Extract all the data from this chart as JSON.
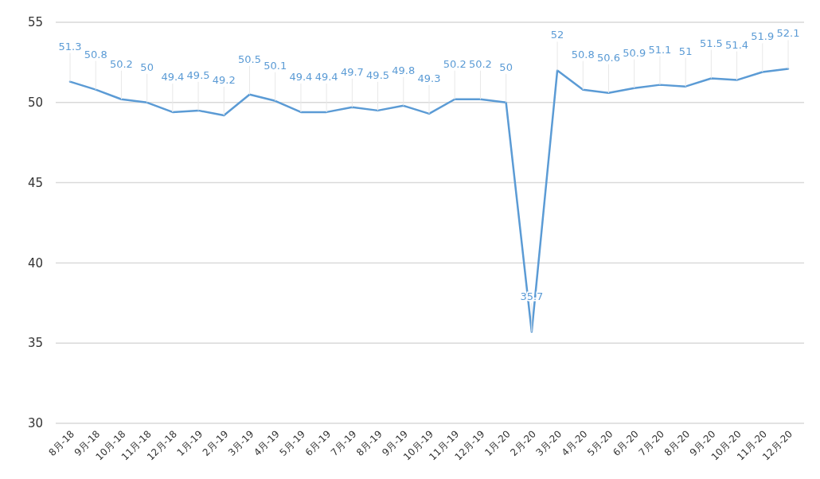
{
  "chart_data": {
    "type": "line",
    "categories": [
      "8月-18",
      "9月-18",
      "10月-18",
      "11月-18",
      "12月-18",
      "1月-19",
      "2月-19",
      "3月-19",
      "4月-19",
      "5月-19",
      "6月-19",
      "7月-19",
      "8月-19",
      "9月-19",
      "10月-19",
      "11月-19",
      "12月-19",
      "1月-20",
      "2月-20",
      "3月-20",
      "4月-20",
      "5月-20",
      "6月-20",
      "7月-20",
      "8月-20",
      "9月-20",
      "10月-20",
      "11月-20",
      "12月-20"
    ],
    "series": [
      {
        "color": "#5b9bd5",
        "values": [
          51.3,
          50.8,
          50.2,
          50,
          49.4,
          49.5,
          49.2,
          50.5,
          50.1,
          49.4,
          49.4,
          49.7,
          49.5,
          49.8,
          49.3,
          50.2,
          50.2,
          50,
          35.7,
          52,
          50.8,
          50.6,
          50.9,
          51.1,
          51,
          51.5,
          51.4,
          51.9,
          52.1
        ]
      }
    ],
    "ylim": [
      30,
      55
    ],
    "yticks": [
      30,
      35,
      40,
      45,
      50,
      55
    ],
    "grid": "y",
    "data_labels": true,
    "marker": "none",
    "line_style": "solid"
  }
}
